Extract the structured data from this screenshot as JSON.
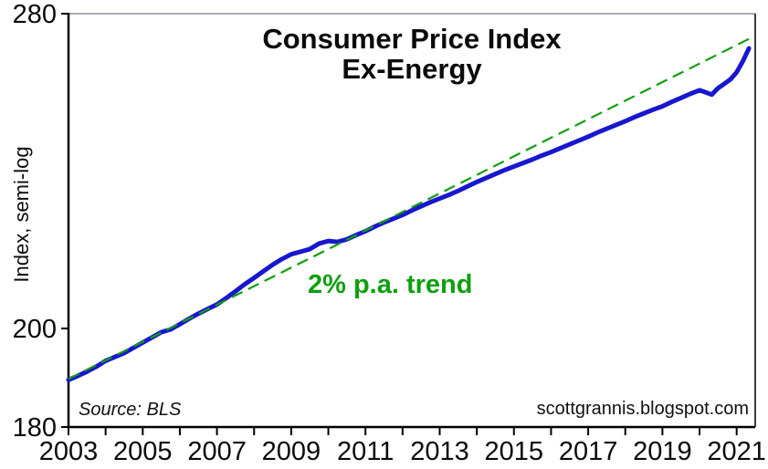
{
  "title": {
    "line1": "Consumer Price Index",
    "line2": "Ex-Energy"
  },
  "annotations": {
    "trend_label": "2% p.a. trend",
    "source": "Source: BLS",
    "watermark": "scottgrannis.blogspot.com"
  },
  "colors": {
    "cpi_line": "#1717cf",
    "trend_line": "#0f9f0f",
    "axis": "#000000",
    "top_border": "#a9a9b2",
    "right_border": "#3d3d3d",
    "text": "#0b0b0b"
  },
  "chart_data": {
    "type": "line",
    "title": "Consumer Price Index Ex-Energy",
    "xlabel": "",
    "ylabel": "Index, semi-log",
    "y_scale": "semi-log",
    "ylim": [
      180,
      280
    ],
    "xlim": [
      2003,
      2021.5
    ],
    "y_ticks": [
      280,
      200,
      180
    ],
    "x_tick_years": [
      2003,
      2004,
      2005,
      2006,
      2007,
      2008,
      2009,
      2010,
      2011,
      2012,
      2013,
      2014,
      2015,
      2016,
      2017,
      2018,
      2019,
      2020,
      2021
    ],
    "x_labeled_years": [
      2003,
      2005,
      2007,
      2009,
      2011,
      2013,
      2015,
      2017,
      2019,
      2021
    ],
    "grid": false,
    "legend": "none (inline annotation)",
    "series": [
      {
        "name": "CPI Ex-Energy",
        "style": "solid",
        "color": "#1717cf",
        "points": [
          [
            2003.0,
            189.3
          ],
          [
            2003.25,
            190.1
          ],
          [
            2003.5,
            191.0
          ],
          [
            2003.75,
            192.0
          ],
          [
            2004.0,
            193.2
          ],
          [
            2004.25,
            194.0
          ],
          [
            2004.5,
            194.8
          ],
          [
            2004.75,
            195.9
          ],
          [
            2005.0,
            197.0
          ],
          [
            2005.25,
            198.1
          ],
          [
            2005.5,
            199.2
          ],
          [
            2005.75,
            199.8
          ],
          [
            2006.0,
            200.9
          ],
          [
            2006.25,
            202.1
          ],
          [
            2006.5,
            203.2
          ],
          [
            2006.75,
            204.2
          ],
          [
            2007.0,
            205.2
          ],
          [
            2007.25,
            206.6
          ],
          [
            2007.5,
            208.1
          ],
          [
            2007.75,
            209.7
          ],
          [
            2008.0,
            211.1
          ],
          [
            2008.25,
            212.6
          ],
          [
            2008.5,
            214.1
          ],
          [
            2008.75,
            215.4
          ],
          [
            2009.0,
            216.5
          ],
          [
            2009.25,
            217.1
          ],
          [
            2009.5,
            217.7
          ],
          [
            2009.75,
            219.0
          ],
          [
            2010.0,
            219.6
          ],
          [
            2010.25,
            219.4
          ],
          [
            2010.5,
            220.0
          ],
          [
            2010.75,
            221.0
          ],
          [
            2011.0,
            221.9
          ],
          [
            2011.25,
            223.0
          ],
          [
            2011.5,
            224.0
          ],
          [
            2011.75,
            224.9
          ],
          [
            2012.0,
            225.8
          ],
          [
            2012.25,
            226.9
          ],
          [
            2012.5,
            227.9
          ],
          [
            2012.75,
            228.9
          ],
          [
            2013.0,
            229.8
          ],
          [
            2013.25,
            230.7
          ],
          [
            2013.5,
            231.7
          ],
          [
            2013.75,
            232.8
          ],
          [
            2014.0,
            233.9
          ],
          [
            2014.25,
            234.9
          ],
          [
            2014.5,
            235.9
          ],
          [
            2014.75,
            236.9
          ],
          [
            2015.0,
            237.8
          ],
          [
            2015.25,
            238.7
          ],
          [
            2015.5,
            239.6
          ],
          [
            2015.75,
            240.6
          ],
          [
            2016.0,
            241.5
          ],
          [
            2016.25,
            242.5
          ],
          [
            2016.5,
            243.5
          ],
          [
            2016.75,
            244.5
          ],
          [
            2017.0,
            245.5
          ],
          [
            2017.25,
            246.6
          ],
          [
            2017.5,
            247.6
          ],
          [
            2017.75,
            248.6
          ],
          [
            2018.0,
            249.6
          ],
          [
            2018.25,
            250.7
          ],
          [
            2018.5,
            251.7
          ],
          [
            2018.75,
            252.7
          ],
          [
            2019.0,
            253.6
          ],
          [
            2019.25,
            254.8
          ],
          [
            2019.5,
            255.9
          ],
          [
            2019.75,
            257.0
          ],
          [
            2020.0,
            258.0
          ],
          [
            2020.17,
            257.4
          ],
          [
            2020.33,
            256.8
          ],
          [
            2020.5,
            258.6
          ],
          [
            2020.67,
            259.8
          ],
          [
            2020.83,
            261.0
          ],
          [
            2021.0,
            263.0
          ],
          [
            2021.17,
            266.2
          ],
          [
            2021.33,
            269.8
          ]
        ]
      },
      {
        "name": "2% p.a. trend",
        "style": "dashed",
        "color": "#0f9f0f",
        "rate_pct_per_year": 2,
        "points": [
          [
            2003.0,
            189.5
          ],
          [
            2021.45,
            273.2
          ]
        ]
      }
    ]
  }
}
